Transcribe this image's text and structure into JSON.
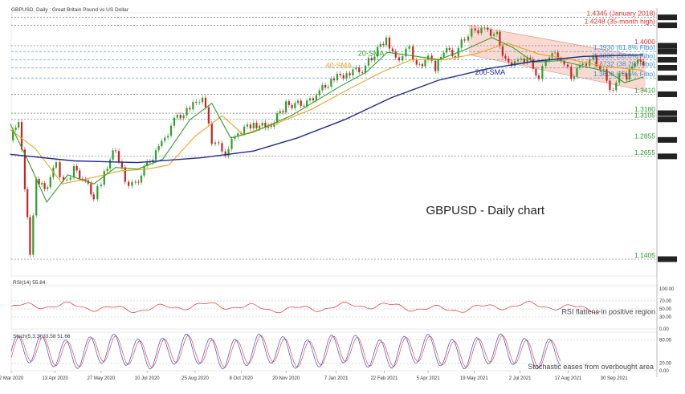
{
  "header": {
    "title": "GBPUSD, Daily : Great Britain Pound vs US Dollar"
  },
  "chart_data": {
    "type": "line",
    "title": "GBPUSD - Daily chart",
    "colors": {
      "price_up": "#2ca02c",
      "price_down": "#cc2222",
      "sma20": "#2aa02a",
      "sma40": "#f0a020",
      "sma200": "#1f2a8a",
      "channel_fill": "#f6c9bd",
      "channel_line": "#e8a090",
      "level_red": "#e0302a",
      "level_green": "#2a9a2a",
      "fibo": "#3a8fd0",
      "rsi": "#e03030",
      "stoch_main": "#3b4fd0",
      "stoch_signal": "#e03030"
    },
    "main_panel": {
      "ylim": [
        1.12,
        1.44
      ],
      "price_path": [
        [
          "2020-03-01",
          1.285
        ],
        [
          "2020-03-09",
          1.31
        ],
        [
          "2020-03-15",
          1.23
        ],
        [
          "2020-03-20",
          1.15
        ],
        [
          "2020-03-26",
          1.24
        ],
        [
          "2020-04-03",
          1.225
        ],
        [
          "2020-04-14",
          1.255
        ],
        [
          "2020-04-21",
          1.232
        ],
        [
          "2020-05-01",
          1.25
        ],
        [
          "2020-05-12",
          1.235
        ],
        [
          "2020-05-20",
          1.215
        ],
        [
          "2020-05-27",
          1.235
        ],
        [
          "2020-06-02",
          1.255
        ],
        [
          "2020-06-10",
          1.275
        ],
        [
          "2020-06-19",
          1.235
        ],
        [
          "2020-06-29",
          1.232
        ],
        [
          "2020-07-10",
          1.255
        ],
        [
          "2020-07-24",
          1.28
        ],
        [
          "2020-08-05",
          1.31
        ],
        [
          "2020-08-20",
          1.323
        ],
        [
          "2020-09-01",
          1.34
        ],
        [
          "2020-09-10",
          1.285
        ],
        [
          "2020-09-23",
          1.27
        ],
        [
          "2020-10-05",
          1.295
        ],
        [
          "2020-10-20",
          1.305
        ],
        [
          "2020-11-03",
          1.3
        ],
        [
          "2020-11-20",
          1.328
        ],
        [
          "2020-12-10",
          1.33
        ],
        [
          "2020-12-22",
          1.345
        ],
        [
          "2021-01-05",
          1.36
        ],
        [
          "2021-01-20",
          1.368
        ],
        [
          "2021-02-01",
          1.372
        ],
        [
          "2021-02-10",
          1.385
        ],
        [
          "2021-02-24",
          1.41
        ],
        [
          "2021-03-05",
          1.383
        ],
        [
          "2021-03-18",
          1.395
        ],
        [
          "2021-03-25",
          1.373
        ],
        [
          "2021-04-05",
          1.386
        ],
        [
          "2021-04-12",
          1.37
        ],
        [
          "2021-04-20",
          1.395
        ],
        [
          "2021-05-01",
          1.39
        ],
        [
          "2021-05-10",
          1.41
        ],
        [
          "2021-05-20",
          1.42
        ],
        [
          "2021-06-01",
          1.418
        ],
        [
          "2021-06-10",
          1.413
        ],
        [
          "2021-06-18",
          1.38
        ],
        [
          "2021-06-30",
          1.38
        ],
        [
          "2021-07-09",
          1.385
        ],
        [
          "2021-07-20",
          1.362
        ],
        [
          "2021-07-30",
          1.39
        ],
        [
          "2021-08-10",
          1.386
        ],
        [
          "2021-08-20",
          1.362
        ],
        [
          "2021-08-31",
          1.378
        ],
        [
          "2021-09-10",
          1.385
        ],
        [
          "2021-09-20",
          1.367
        ],
        [
          "2021-09-29",
          1.342
        ],
        [
          "2021-10-05",
          1.365
        ],
        [
          "2021-10-12",
          1.36
        ],
        [
          "2021-10-20",
          1.382
        ],
        [
          "2021-10-28",
          1.376
        ]
      ],
      "sma20": [
        [
          "2020-03-01",
          1.305
        ],
        [
          "2020-03-20",
          1.255
        ],
        [
          "2020-04-05",
          1.21
        ],
        [
          "2020-04-25",
          1.243
        ],
        [
          "2020-05-20",
          1.232
        ],
        [
          "2020-06-10",
          1.252
        ],
        [
          "2020-07-01",
          1.25
        ],
        [
          "2020-07-25",
          1.262
        ],
        [
          "2020-08-20",
          1.31
        ],
        [
          "2020-09-10",
          1.33
        ],
        [
          "2020-09-28",
          1.288
        ],
        [
          "2020-10-20",
          1.295
        ],
        [
          "2020-11-25",
          1.315
        ],
        [
          "2021-01-10",
          1.35
        ],
        [
          "2021-02-05",
          1.368
        ],
        [
          "2021-02-25",
          1.392
        ],
        [
          "2021-03-20",
          1.388
        ],
        [
          "2021-04-15",
          1.383
        ],
        [
          "2021-05-10",
          1.395
        ],
        [
          "2021-06-05",
          1.41
        ],
        [
          "2021-06-25",
          1.398
        ],
        [
          "2021-07-15",
          1.38
        ],
        [
          "2021-08-10",
          1.382
        ],
        [
          "2021-09-01",
          1.375
        ],
        [
          "2021-09-25",
          1.368
        ],
        [
          "2021-10-10",
          1.355
        ],
        [
          "2021-10-28",
          1.362
        ]
      ],
      "sma40": [
        [
          "2020-03-01",
          1.298
        ],
        [
          "2020-03-25",
          1.275
        ],
        [
          "2020-04-20",
          1.232
        ],
        [
          "2020-05-20",
          1.24
        ],
        [
          "2020-06-15",
          1.248
        ],
        [
          "2020-07-10",
          1.25
        ],
        [
          "2020-07-31",
          1.255
        ],
        [
          "2020-08-25",
          1.29
        ],
        [
          "2020-09-20",
          1.315
        ],
        [
          "2020-10-10",
          1.292
        ],
        [
          "2020-11-10",
          1.305
        ],
        [
          "2020-12-15",
          1.323
        ],
        [
          "2021-01-20",
          1.348
        ],
        [
          "2021-02-20",
          1.368
        ],
        [
          "2021-03-20",
          1.383
        ],
        [
          "2021-04-20",
          1.383
        ],
        [
          "2021-05-20",
          1.39
        ],
        [
          "2021-06-20",
          1.403
        ],
        [
          "2021-07-20",
          1.39
        ],
        [
          "2021-08-20",
          1.383
        ],
        [
          "2021-09-20",
          1.375
        ],
        [
          "2021-10-28",
          1.37
        ]
      ],
      "sma200": [
        [
          "2020-03-01",
          1.268
        ],
        [
          "2020-05-01",
          1.26
        ],
        [
          "2020-07-01",
          1.258
        ],
        [
          "2020-09-01",
          1.264
        ],
        [
          "2020-10-20",
          1.272
        ],
        [
          "2020-12-01",
          1.288
        ],
        [
          "2021-01-15",
          1.31
        ],
        [
          "2021-03-01",
          1.337
        ],
        [
          "2021-04-15",
          1.358
        ],
        [
          "2021-06-01",
          1.372
        ],
        [
          "2021-07-15",
          1.381
        ],
        [
          "2021-09-01",
          1.387
        ],
        [
          "2021-10-28",
          1.389
        ]
      ],
      "channel": {
        "upper": [
          [
            "2021-05-14",
            1.425
          ],
          [
            "2021-10-30",
            1.386
          ]
        ],
        "lower": [
          [
            "2021-05-14",
            1.389
          ],
          [
            "2021-10-30",
            1.345
          ]
        ]
      },
      "levels": [
        {
          "value": 1.4345,
          "label": "1.4345 (January 2018)",
          "color": "red",
          "style": "dotted"
        },
        {
          "value": 1.4248,
          "label": "1.4248 (35-month high)",
          "color": "red",
          "style": "dotted"
        },
        {
          "value": 1.4,
          "label": "1.4000",
          "color": "red",
          "style": "dotted"
        },
        {
          "value": 1.393,
          "label": "1.3930 (61.8% Fibo)",
          "color": "fibo",
          "style": "dotted"
        },
        {
          "value": 1.383,
          "label": "1.3830 (50.0% Fibo)",
          "color": "fibo",
          "style": "dotted"
        },
        {
          "value": 1.3732,
          "label": "1.3732 (38.2% Fibo)",
          "color": "fibo",
          "style": "dotted"
        },
        {
          "value": 1.3608,
          "label": "1.3608 (23.6% Fibo)",
          "color": "fibo",
          "style": "dotted"
        },
        {
          "value": 1.341,
          "label": "1.3410",
          "color": "green",
          "style": "dotted"
        },
        {
          "value": 1.318,
          "label": "1.3180",
          "color": "green",
          "style": "dotted"
        },
        {
          "value": 1.3105,
          "label": "1.3105",
          "color": "green",
          "style": "dotted"
        },
        {
          "value": 1.2855,
          "label": "1.2855",
          "color": "green",
          "style": "none"
        },
        {
          "value": 1.2655,
          "label": "1.2655",
          "color": "green",
          "style": "dotted"
        },
        {
          "value": 1.1405,
          "label": "1.1405",
          "color": "green",
          "style": "dotted"
        }
      ],
      "annotations": {
        "sma20_label": "20-SMA",
        "sma40_label": "40-SMA",
        "sma200_label": "200-SMA",
        "chart_title": "GBPUSD - Daily chart"
      }
    },
    "rsi_panel": {
      "header": "RSI(14) 55.84",
      "ylim": [
        0,
        100
      ],
      "ticks": [
        "100.00",
        "70.00",
        "50.00",
        "30.00",
        "0.00"
      ],
      "annotation": "RSI flattens in positive region"
    },
    "stoch_panel": {
      "header": "Stoch(5,3,3) 33.58 51.66",
      "ylim": [
        0,
        100
      ],
      "ticks": [
        "80.00",
        "20.00",
        "0.00"
      ],
      "annotation": "Stochastic eases from overbought area"
    },
    "x_axis": {
      "labels": [
        [
          "2020-03-02",
          "2 Mar 2020"
        ],
        [
          "2020-04-13",
          "13 Apr 2020"
        ],
        [
          "2020-05-27",
          "27 May 2020"
        ],
        [
          "2020-07-10",
          "10 Jul 2020"
        ],
        [
          "2020-08-25",
          "25 Aug 2020"
        ],
        [
          "2020-10-08",
          "8 Oct 2020"
        ],
        [
          "2020-11-20",
          "20 Nov 2020"
        ],
        [
          "2021-01-07",
          "7 Jan 2021"
        ],
        [
          "2021-02-22",
          "22 Feb 2021"
        ],
        [
          "2021-04-05",
          "5 Apr 2021"
        ],
        [
          "2021-05-19",
          "19 May 2021"
        ],
        [
          "2021-07-02",
          "2 Jul 2021"
        ],
        [
          "2021-08-17",
          "17 Aug 2021"
        ],
        [
          "2021-09-30",
          "30 Sep 2021"
        ]
      ],
      "range": [
        "2020-03-02",
        "2021-11-10"
      ]
    }
  }
}
